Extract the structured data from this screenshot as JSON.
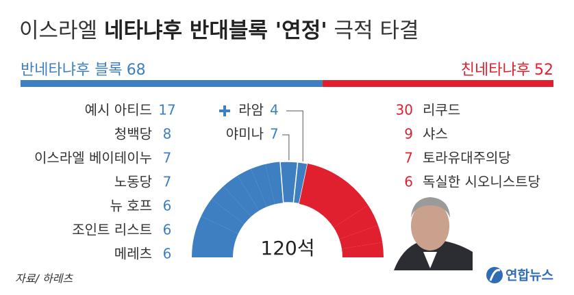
{
  "chart_data": {
    "type": "semicircle-donut",
    "title": [
      "이스라엘 ",
      "네타냐후 반대블록 '연정'",
      " 극적 타결"
    ],
    "series": [
      {
        "name": "반네타냐후 블록",
        "value": 68,
        "color": "#3d7fc1"
      },
      {
        "name": "친네타냐후",
        "value": 52,
        "color": "#e0202e"
      }
    ],
    "left_parties": [
      {
        "name": "예시 아티드",
        "value": 17
      },
      {
        "name": "청백당",
        "value": 8
      },
      {
        "name": "이스라엘 베이테이누",
        "value": 7
      },
      {
        "name": "노동당",
        "value": 7
      },
      {
        "name": "뉴 호프",
        "value": 6
      },
      {
        "name": "조인트 리스트",
        "value": 6
      },
      {
        "name": "메레츠",
        "value": 6
      }
    ],
    "callouts": [
      {
        "name": "라암",
        "value": 4
      },
      {
        "name": "야미나",
        "value": 7
      }
    ],
    "right_parties": [
      {
        "name": "리쿠드",
        "value": 30
      },
      {
        "name": "샤스",
        "value": 9
      },
      {
        "name": "토라유대주의당",
        "value": 7
      },
      {
        "name": "독실한 시오니스트당",
        "value": 6
      }
    ],
    "center_label": "120석",
    "source": "자료/ 하레츠",
    "logo": "연합뉴스"
  }
}
